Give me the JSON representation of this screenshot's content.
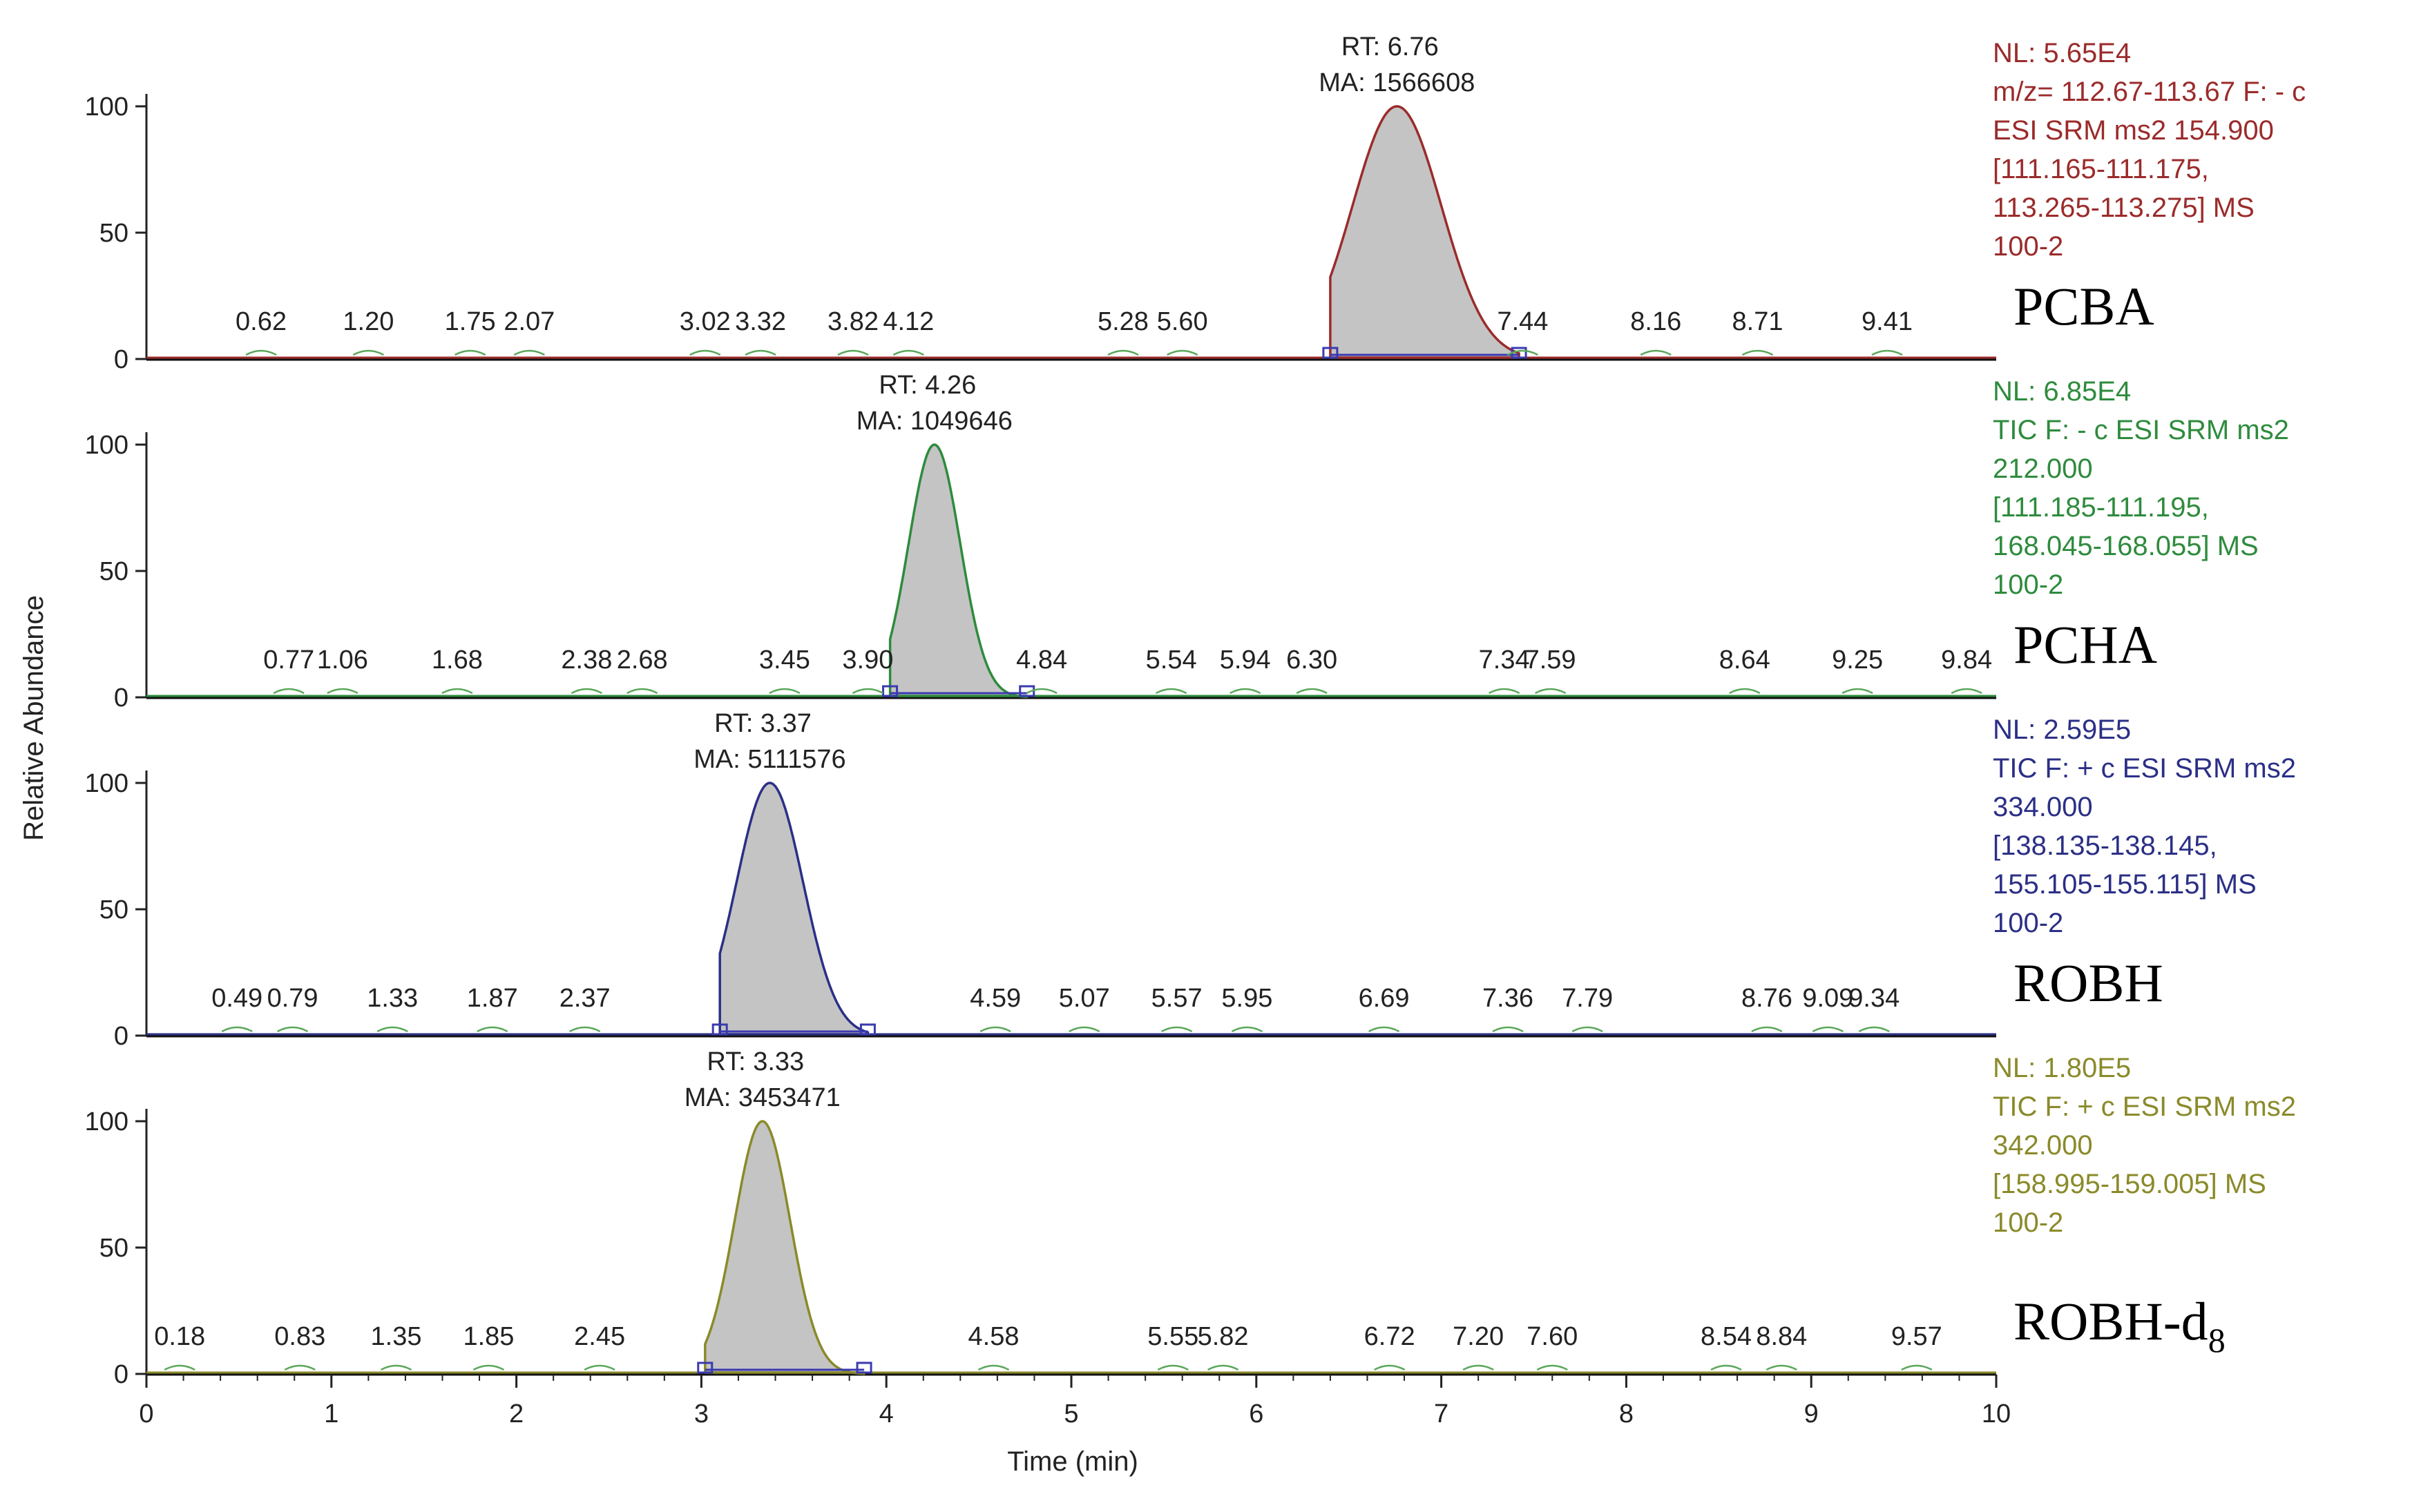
{
  "chart_data": {
    "type": "line",
    "xlabel": "Time (min)",
    "ylabel": "Relative Abundance",
    "xlim": [
      0,
      10
    ],
    "x_ticks": [
      0,
      1,
      2,
      3,
      4,
      5,
      6,
      7,
      8,
      9,
      10
    ],
    "ylim": [
      0,
      100
    ],
    "y_ticks": [
      0,
      50,
      100
    ],
    "grid": false,
    "panels": [
      {
        "compound": "PCBA",
        "subscript": "",
        "color": "#9b2b2b",
        "peak": {
          "rt": 6.76,
          "width": 0.24,
          "start": 6.4,
          "end": 7.42
        },
        "peak_label": {
          "rt": "RT: 6.76",
          "ma": "MA: 1566608"
        },
        "info": [
          "NL: 5.65E4",
          "m/z= 112.67-113.67 F: - c",
          "ESI SRM ms2 154.900",
          "[111.165-111.175,",
          "113.265-113.275]  MS",
          "100-2"
        ],
        "minor_peaks": [
          "0.62",
          "1.20",
          "1.75",
          "2.07",
          "3.02",
          "3.32",
          "3.82",
          "4.12",
          "5.28",
          "5.60",
          "7.44",
          "8.16",
          "8.71",
          "9.41"
        ]
      },
      {
        "compound": "PCHA",
        "subscript": "",
        "color": "#2e8b3d",
        "peak": {
          "rt": 4.26,
          "width": 0.14,
          "start": 4.02,
          "end": 4.76
        },
        "peak_label": {
          "rt": "RT: 4.26",
          "ma": "MA: 1049646"
        },
        "info": [
          "NL: 6.85E4",
          "TIC F: - c ESI SRM ms2",
          "212.000",
          "[111.185-111.195,",
          "168.045-168.055]  MS",
          "100-2"
        ],
        "minor_peaks": [
          "0.77",
          "1.06",
          "1.68",
          "2.38",
          "2.68",
          "3.45",
          "3.90",
          "4.84",
          "5.54",
          "5.94",
          "6.30",
          "7.34",
          "7.59",
          "8.64",
          "9.25",
          "9.84"
        ]
      },
      {
        "compound": "ROBH",
        "subscript": "",
        "color": "#2b2f86",
        "peak": {
          "rt": 3.37,
          "width": 0.18,
          "start": 3.1,
          "end": 3.9
        },
        "peak_label": {
          "rt": "RT: 3.37",
          "ma": "MA: 5111576"
        },
        "info": [
          "NL: 2.59E5",
          "TIC F: + c ESI SRM ms2",
          "334.000",
          "[138.135-138.145,",
          "155.105-155.115]  MS",
          "100-2"
        ],
        "minor_peaks": [
          "0.49",
          "0.79",
          "1.33",
          "1.87",
          "2.37",
          "4.59",
          "5.07",
          "5.57",
          "5.95",
          "6.69",
          "7.36",
          "7.79",
          "8.76",
          "9.09",
          "9.34"
        ]
      },
      {
        "compound": "ROBH-d",
        "subscript": "8",
        "color": "#8a8a2a",
        "peak": {
          "rt": 3.33,
          "width": 0.15,
          "start": 3.02,
          "end": 3.88
        },
        "peak_label": {
          "rt": "RT: 3.33",
          "ma": "MA: 3453471"
        },
        "info": [
          "NL: 1.80E5",
          "TIC F: + c ESI SRM ms2",
          "342.000",
          "[158.995-159.005]  MS",
          "100-2"
        ],
        "minor_peaks": [
          "0.18",
          "0.83",
          "1.35",
          "1.85",
          "2.45",
          "4.58",
          "5.55",
          "5.82",
          "6.72",
          "7.20",
          "7.60",
          "8.54",
          "8.84",
          "9.57"
        ]
      }
    ]
  }
}
